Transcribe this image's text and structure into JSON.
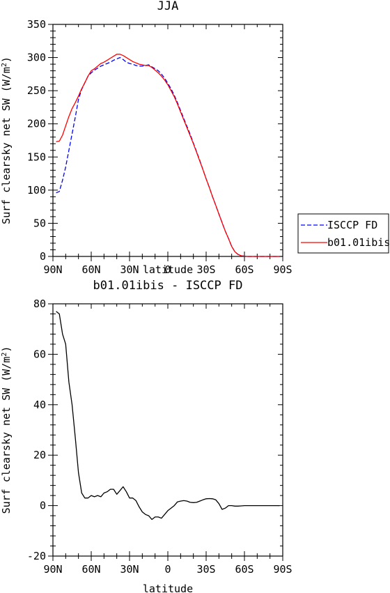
{
  "chart_data": [
    {
      "type": "line",
      "title": "JJA",
      "xlabel": "latitude",
      "ylabel": "Surf clearsky net SW (W/m~S~2~N~)",
      "ylim": [
        0,
        350
      ],
      "yticks": [
        0,
        50,
        100,
        150,
        200,
        250,
        300,
        350
      ],
      "xlim": [
        90,
        -90
      ],
      "xticks": [
        90,
        60,
        30,
        0,
        -30,
        -60,
        -90
      ],
      "xticklabels": [
        "90N",
        "60N",
        "30N",
        "0",
        "30S",
        "60S",
        "90S"
      ],
      "legend": "right-outside",
      "series": [
        {
          "name": "ISCCP FD",
          "color": "#0000ff",
          "dash": "dashed",
          "x": [
            87.5,
            85,
            82.5,
            80,
            77.5,
            75,
            72.5,
            70,
            67.5,
            65,
            62.5,
            60,
            57.5,
            55,
            52.5,
            50,
            47.5,
            45,
            42.5,
            40,
            37.5,
            35,
            32.5,
            30,
            27.5,
            25,
            22.5,
            20,
            17.5,
            15,
            12.5,
            10,
            7.5,
            5,
            2.5,
            0,
            -2.5,
            -5,
            -7.5,
            -10,
            -12.5,
            -15,
            -17.5,
            -20,
            -22.5,
            -25,
            -27.5,
            -30,
            -32.5,
            -35,
            -37.5,
            -40,
            -42.5,
            -45,
            -47.5,
            -50,
            -52.5,
            -55,
            -57.5,
            -60,
            -62.5,
            -65,
            -67.5,
            -70,
            -72.5,
            -75,
            -77.5,
            -80,
            -82.5,
            -85,
            -87.5
          ],
          "values": [
            96,
            98,
            115,
            135,
            160,
            185,
            210,
            237,
            252,
            262,
            272,
            277,
            281,
            284,
            287,
            289,
            291,
            293,
            296,
            298,
            300,
            297,
            293,
            291,
            290,
            288,
            287,
            287,
            288,
            289,
            286,
            283,
            280,
            275,
            269,
            261,
            253,
            243,
            232,
            220,
            208,
            196,
            184,
            171,
            158,
            145,
            131,
            117,
            104,
            90,
            77,
            64,
            51,
            38,
            27,
            15,
            7,
            3,
            1,
            0.5,
            0,
            0,
            0,
            0,
            0,
            0,
            0,
            0,
            0,
            0,
            0
          ]
        },
        {
          "name": "b01.01ibis",
          "color": "#ff0000",
          "dash": "solid",
          "x": [
            87.5,
            85,
            82.5,
            80,
            77.5,
            75,
            72.5,
            70,
            67.5,
            65,
            62.5,
            60,
            57.5,
            55,
            52.5,
            50,
            47.5,
            45,
            42.5,
            40,
            37.5,
            35,
            32.5,
            30,
            27.5,
            25,
            22.5,
            20,
            17.5,
            15,
            12.5,
            10,
            7.5,
            5,
            2.5,
            0,
            -2.5,
            -5,
            -7.5,
            -10,
            -12.5,
            -15,
            -17.5,
            -20,
            -22.5,
            -25,
            -27.5,
            -30,
            -32.5,
            -35,
            -37.5,
            -40,
            -42.5,
            -45,
            -47.5,
            -50,
            -52.5,
            -55,
            -57.5,
            -60,
            -62.5,
            -65,
            -67.5,
            -70,
            -72.5,
            -75,
            -77.5,
            -80,
            -82.5,
            -85,
            -87.5
          ],
          "values": [
            173,
            174,
            183,
            197,
            211,
            223,
            232,
            242,
            253,
            262,
            272,
            280,
            283,
            287,
            291,
            293,
            296,
            299,
            302,
            305,
            305,
            303,
            300,
            297,
            294,
            292,
            290,
            289,
            288,
            288,
            285,
            281,
            277,
            272,
            266,
            259,
            250,
            241,
            230,
            218,
            206,
            194,
            182,
            170,
            157,
            144,
            131,
            117,
            104,
            90,
            77,
            64,
            51,
            38,
            27,
            15,
            7,
            3,
            1,
            0.5,
            0,
            0,
            0,
            0,
            0,
            0,
            0,
            0,
            0,
            0,
            0
          ]
        }
      ]
    },
    {
      "type": "line",
      "title": "b01.01ibis - ISCCP FD",
      "xlabel": "latitude",
      "ylabel": "Surf clearsky net SW (W/m~S~2~N~)",
      "ylim": [
        -20,
        80
      ],
      "yticks": [
        -20,
        0,
        20,
        40,
        60,
        80
      ],
      "xlim": [
        90,
        -90
      ],
      "xticks": [
        90,
        60,
        30,
        0,
        -30,
        -60,
        -90
      ],
      "xticklabels": [
        "90N",
        "60N",
        "30N",
        "0",
        "30S",
        "60S",
        "90S"
      ],
      "series": [
        {
          "color": "#000000",
          "dash": "solid",
          "x": [
            87.5,
            85,
            82.5,
            80,
            77.5,
            75,
            72.5,
            70,
            67.5,
            65,
            62.5,
            60,
            57.5,
            55,
            52.5,
            50,
            47.5,
            45,
            42.5,
            40,
            37.5,
            35,
            32.5,
            30,
            27.5,
            25,
            22.5,
            20,
            17.5,
            15,
            12.5,
            10,
            7.5,
            5,
            2.5,
            0,
            -2.5,
            -5,
            -7.5,
            -10,
            -12.5,
            -15,
            -17.5,
            -20,
            -22.5,
            -25,
            -27.5,
            -30,
            -32.5,
            -35,
            -37.5,
            -40,
            -42.5,
            -45,
            -47.5,
            -50,
            -52.5,
            -55,
            -57.5,
            -60,
            -62.5,
            -65,
            -67.5,
            -70,
            -72.5,
            -75,
            -77.5,
            -80,
            -82.5,
            -85,
            -87.5
          ],
          "values": [
            77,
            76,
            68,
            64,
            49,
            40,
            27,
            13,
            5,
            3,
            3,
            4,
            3.5,
            4,
            3.5,
            5,
            5.5,
            6.5,
            6.5,
            4.5,
            6,
            7.5,
            5.5,
            3,
            3,
            2,
            -0.5,
            -2.5,
            -3.5,
            -4,
            -5.5,
            -4.5,
            -4.5,
            -5,
            -3.5,
            -2,
            -1,
            0,
            1.5,
            1.8,
            2,
            1.8,
            1.3,
            1.2,
            1.3,
            1.8,
            2.3,
            2.7,
            2.8,
            2.7,
            2.3,
            0.8,
            -1.5,
            -1,
            0,
            0,
            -0.2,
            -0.2,
            -0.1,
            0,
            0,
            0,
            0,
            0,
            0,
            0,
            0,
            0,
            0,
            0,
            0
          ]
        }
      ]
    }
  ]
}
